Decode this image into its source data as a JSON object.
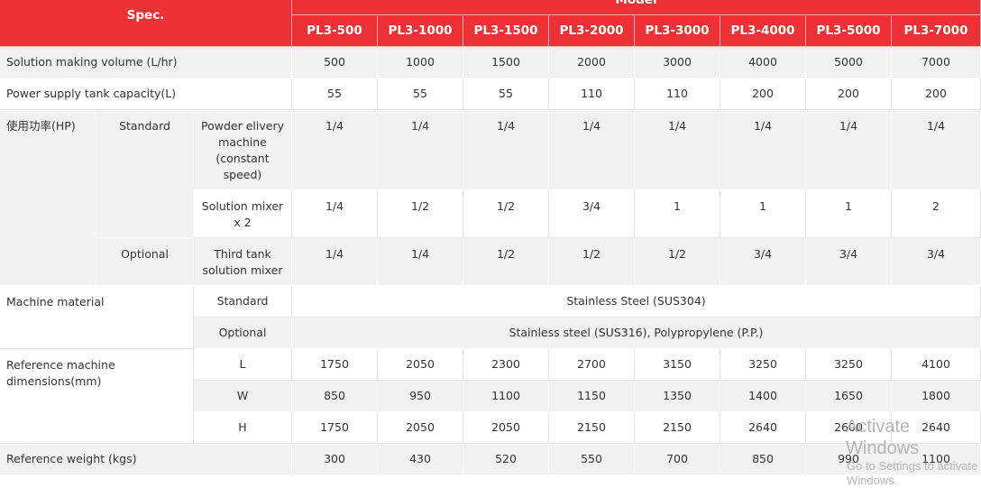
{
  "header": {
    "spec": "Spec.",
    "model": "Model",
    "models": [
      "PL3-500",
      "PL3-1000",
      "PL3-1500",
      "PL3-2000",
      "PL3-3000",
      "PL3-4000",
      "PL3-5000",
      "PL3-7000"
    ]
  },
  "rows": {
    "volume": {
      "label": "Solution making volume (L/hr)",
      "values": [
        "500",
        "1000",
        "1500",
        "2000",
        "3000",
        "4000",
        "5000",
        "7000"
      ]
    },
    "tank": {
      "label": "Power supply tank capacity(L)",
      "values": [
        "55",
        "55",
        "55",
        "110",
        "110",
        "200",
        "200",
        "200"
      ]
    },
    "power": {
      "label": "使用功率(HP)",
      "standard_label": "Standard",
      "optional_label": "Optional",
      "powder": {
        "label": "Powder elivery machine (constant speed)",
        "values": [
          "1/4",
          "1/4",
          "1/4",
          "1/4",
          "1/4",
          "1/4",
          "1/4",
          "1/4"
        ]
      },
      "mixer": {
        "label": "Solution mixer x 2",
        "values": [
          "1/4",
          "1/2",
          "1/2",
          "3/4",
          "1",
          "1",
          "1",
          "2"
        ]
      },
      "third": {
        "label": "Third tank solution mixer",
        "values": [
          "1/4",
          "1/4",
          "1/2",
          "1/2",
          "1/2",
          "3/4",
          "3/4",
          "3/4"
        ]
      }
    },
    "material": {
      "label": "Machine material",
      "standard_label": "Standard",
      "standard_value": "Stainless Steel (SUS304)",
      "optional_label": "Optional",
      "optional_value": "Stainless steel (SUS316), Polypropylene (P.P.)"
    },
    "dimensions": {
      "label": "Reference machine dimensions(mm)",
      "L": {
        "label": "L",
        "values": [
          "1750",
          "2050",
          "2300",
          "2700",
          "3150",
          "3250",
          "3250",
          "4100"
        ]
      },
      "W": {
        "label": "W",
        "values": [
          "850",
          "950",
          "1100",
          "1150",
          "1350",
          "1400",
          "1650",
          "1800"
        ]
      },
      "H": {
        "label": "H",
        "values": [
          "1750",
          "2050",
          "2050",
          "2150",
          "2150",
          "2640",
          "2600",
          "2640"
        ]
      }
    },
    "weight": {
      "label": "Reference weight (kgs)",
      "values": [
        "300",
        "430",
        "520",
        "550",
        "700",
        "850",
        "990",
        "1100"
      ]
    }
  },
  "watermark": {
    "line1": "Activate Windows",
    "line2": "Go to Settings to activate Windows."
  }
}
